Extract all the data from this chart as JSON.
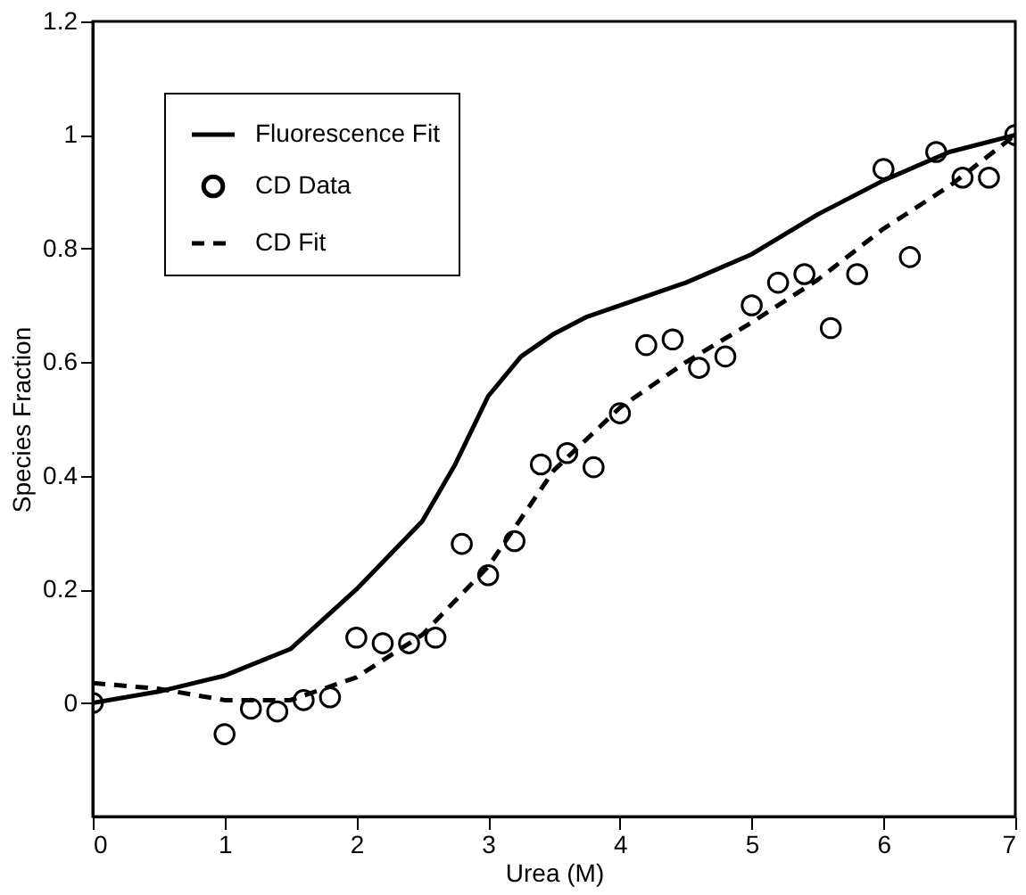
{
  "chart_data": {
    "type": "line",
    "xlabel": "Urea (M)",
    "ylabel": "Species Fraction",
    "xlim": [
      0,
      7
    ],
    "xticks": [
      0,
      1,
      2,
      3,
      4,
      5,
      6,
      7
    ],
    "ylim": [
      -0.2,
      1.2
    ],
    "yticks": [
      0,
      0.2,
      0.4,
      0.6,
      0.8,
      1,
      1.2
    ],
    "grid": false,
    "legend": "top left",
    "series": [
      {
        "name": "Fluorescence Fit",
        "type": "line",
        "line_style": "solid",
        "color": "#000000",
        "x": [
          0,
          0.5,
          1,
          1.5,
          2,
          2.25,
          2.5,
          2.75,
          3,
          3.25,
          3.5,
          3.75,
          4,
          4.5,
          5,
          5.5,
          6,
          6.5,
          7
        ],
        "values": [
          0,
          0.02,
          0.048,
          0.095,
          0.2,
          0.26,
          0.32,
          0.42,
          0.54,
          0.61,
          0.65,
          0.68,
          0.7,
          0.74,
          0.79,
          0.86,
          0.92,
          0.97,
          1.0
        ]
      },
      {
        "name": "CD Data",
        "type": "scatter",
        "marker": "circle",
        "color": "#000000",
        "x": [
          0,
          1,
          1.2,
          1.4,
          1.6,
          1.8,
          2,
          2.2,
          2.4,
          2.6,
          2.8,
          3,
          3.2,
          3.4,
          3.6,
          3.8,
          4,
          4.2,
          4.4,
          4.6,
          4.8,
          5,
          5.2,
          5.4,
          5.6,
          5.8,
          6,
          6.2,
          6.4,
          6.6,
          6.8,
          7
        ],
        "values": [
          0,
          -0.055,
          -0.01,
          -0.015,
          0.005,
          0.01,
          0.115,
          0.105,
          0.105,
          0.115,
          0.28,
          0.225,
          0.285,
          0.42,
          0.44,
          0.415,
          0.51,
          0.63,
          0.64,
          0.59,
          0.61,
          0.7,
          0.74,
          0.755,
          0.66,
          0.755,
          0.94,
          0.785,
          0.97,
          0.925,
          0.925,
          1.0
        ]
      },
      {
        "name": "CD Fit",
        "type": "line",
        "line_style": "dashed",
        "color": "#000000",
        "x": [
          0,
          0.5,
          1,
          1.5,
          2,
          2.5,
          3,
          3.5,
          4,
          4.5,
          5,
          5.5,
          6,
          6.5,
          7
        ],
        "values": [
          0.035,
          0.025,
          0.005,
          0.005,
          0.045,
          0.12,
          0.24,
          0.41,
          0.52,
          0.6,
          0.67,
          0.745,
          0.835,
          0.91,
          1.0
        ]
      }
    ]
  }
}
